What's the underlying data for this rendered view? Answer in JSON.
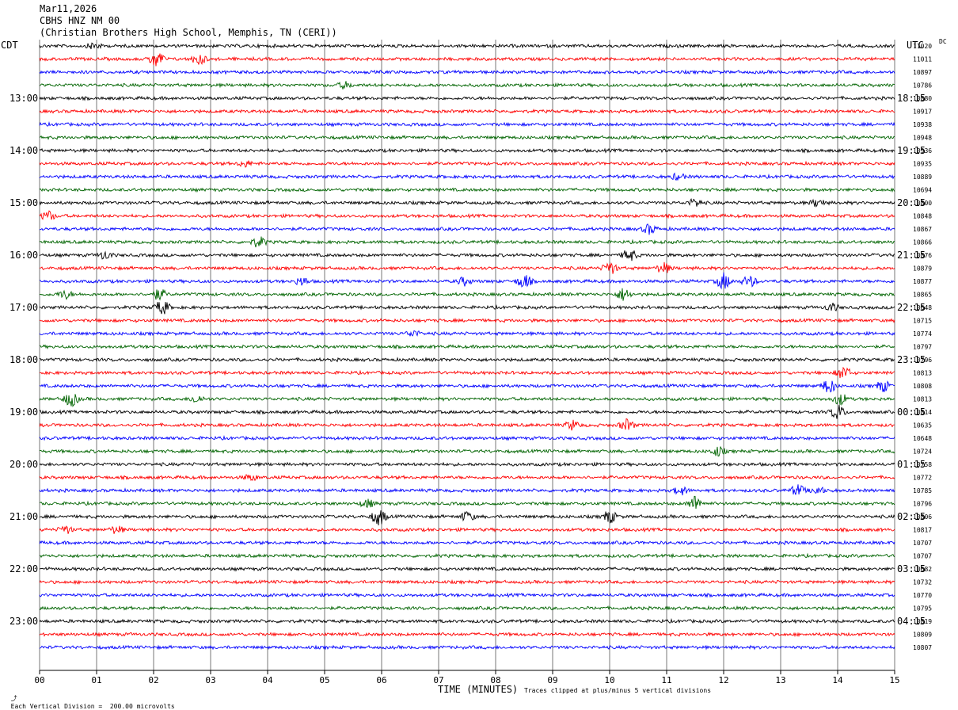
{
  "header": {
    "date": "Mar11,2026",
    "station": "CBHS HNZ NM 00",
    "location": "(Christian Brothers High School, Memphis, TN (CERI))"
  },
  "left_zone": "CDT",
  "right_zone": "UTC",
  "dc_label": "DC",
  "footer": {
    "scale": "Each Vertical Division =  200.00 microvolts",
    "xlabel": "TIME (MINUTES)",
    "clip": "Traces clipped at plus/minus 5 vertical divisions"
  },
  "colors": {
    "trace_cycle": [
      "#000000",
      "#ff0000",
      "#0000ff",
      "#006400"
    ],
    "grid": "#000000",
    "background": "#ffffff"
  },
  "chart_data": {
    "type": "line",
    "title": "CBHS HNZ NM 00",
    "xlabel": "TIME (MINUTES)",
    "xlim": [
      0,
      15
    ],
    "x_ticks": [
      "00",
      "01",
      "02",
      "03",
      "04",
      "05",
      "06",
      "07",
      "08",
      "09",
      "10",
      "11",
      "12",
      "13",
      "14",
      "15"
    ],
    "left_hour_labels": [
      "13:00",
      "14:00",
      "15:00",
      "16:00",
      "17:00",
      "18:00",
      "19:00",
      "20:00",
      "21:00",
      "22:00",
      "23:00"
    ],
    "right_hour_labels": [
      "18:15",
      "19:15",
      "20:15",
      "21:15",
      "22:15",
      "23:15",
      "00:15",
      "01:15",
      "02:15",
      "03:15",
      "04:15"
    ],
    "rows_per_hour": 4,
    "first_label_row": 4,
    "dc_offsets": [
      11020,
      11011,
      10897,
      10786,
      10880,
      10917,
      10938,
      10948,
      10936,
      10935,
      10889,
      10694,
      10800,
      10848,
      10867,
      10866,
      10876,
      10879,
      10877,
      10865,
      10648,
      10715,
      10774,
      10797,
      10796,
      10813,
      10808,
      10813,
      10814,
      10635,
      10648,
      10724,
      10758,
      10772,
      10785,
      10796,
      10806,
      10817,
      10707,
      10707,
      10682,
      10732,
      10770,
      10795,
      10819,
      10809,
      10807
    ],
    "events": [
      {
        "row": 0,
        "minute": 0.95,
        "amp": 5
      },
      {
        "row": 1,
        "minute": 2.05,
        "amp": 12
      },
      {
        "row": 1,
        "minute": 2.8,
        "amp": 8
      },
      {
        "row": 3,
        "minute": 5.35,
        "amp": 5
      },
      {
        "row": 9,
        "minute": 3.6,
        "amp": 5
      },
      {
        "row": 10,
        "minute": 11.2,
        "amp": 5
      },
      {
        "row": 12,
        "minute": 11.5,
        "amp": 6
      },
      {
        "row": 12,
        "minute": 13.65,
        "amp": 6
      },
      {
        "row": 13,
        "minute": 0.15,
        "amp": 7
      },
      {
        "row": 14,
        "minute": 10.7,
        "amp": 7
      },
      {
        "row": 15,
        "minute": 3.85,
        "amp": 8
      },
      {
        "row": 16,
        "minute": 1.15,
        "amp": 6
      },
      {
        "row": 16,
        "minute": 10.35,
        "amp": 9
      },
      {
        "row": 17,
        "minute": 10.0,
        "amp": 9
      },
      {
        "row": 17,
        "minute": 10.95,
        "amp": 8
      },
      {
        "row": 18,
        "minute": 4.6,
        "amp": 6
      },
      {
        "row": 18,
        "minute": 7.45,
        "amp": 6
      },
      {
        "row": 18,
        "minute": 8.5,
        "amp": 10
      },
      {
        "row": 18,
        "minute": 12.0,
        "amp": 11
      },
      {
        "row": 18,
        "minute": 12.45,
        "amp": 8
      },
      {
        "row": 19,
        "minute": 0.45,
        "amp": 6
      },
      {
        "row": 19,
        "minute": 2.1,
        "amp": 8
      },
      {
        "row": 19,
        "minute": 10.25,
        "amp": 9
      },
      {
        "row": 20,
        "minute": 2.15,
        "amp": 10
      },
      {
        "row": 20,
        "minute": 13.9,
        "amp": 6
      },
      {
        "row": 22,
        "minute": 6.55,
        "amp": 5
      },
      {
        "row": 25,
        "minute": 14.1,
        "amp": 9
      },
      {
        "row": 26,
        "minute": 13.85,
        "amp": 10
      },
      {
        "row": 26,
        "minute": 14.8,
        "amp": 8
      },
      {
        "row": 27,
        "minute": 0.55,
        "amp": 10
      },
      {
        "row": 27,
        "minute": 2.75,
        "amp": 6
      },
      {
        "row": 27,
        "minute": 14.05,
        "amp": 8
      },
      {
        "row": 28,
        "minute": 14.0,
        "amp": 10
      },
      {
        "row": 29,
        "minute": 9.35,
        "amp": 7
      },
      {
        "row": 29,
        "minute": 10.3,
        "amp": 8
      },
      {
        "row": 31,
        "minute": 11.9,
        "amp": 7
      },
      {
        "row": 33,
        "minute": 3.7,
        "amp": 5
      },
      {
        "row": 34,
        "minute": 11.25,
        "amp": 6
      },
      {
        "row": 34,
        "minute": 13.3,
        "amp": 8
      },
      {
        "row": 34,
        "minute": 13.65,
        "amp": 6
      },
      {
        "row": 35,
        "minute": 5.75,
        "amp": 6
      },
      {
        "row": 35,
        "minute": 11.5,
        "amp": 10
      },
      {
        "row": 36,
        "minute": 5.95,
        "amp": 12
      },
      {
        "row": 36,
        "minute": 7.5,
        "amp": 7
      },
      {
        "row": 36,
        "minute": 10.0,
        "amp": 9
      },
      {
        "row": 37,
        "minute": 0.45,
        "amp": 6
      },
      {
        "row": 37,
        "minute": 1.35,
        "amp": 6
      }
    ]
  }
}
